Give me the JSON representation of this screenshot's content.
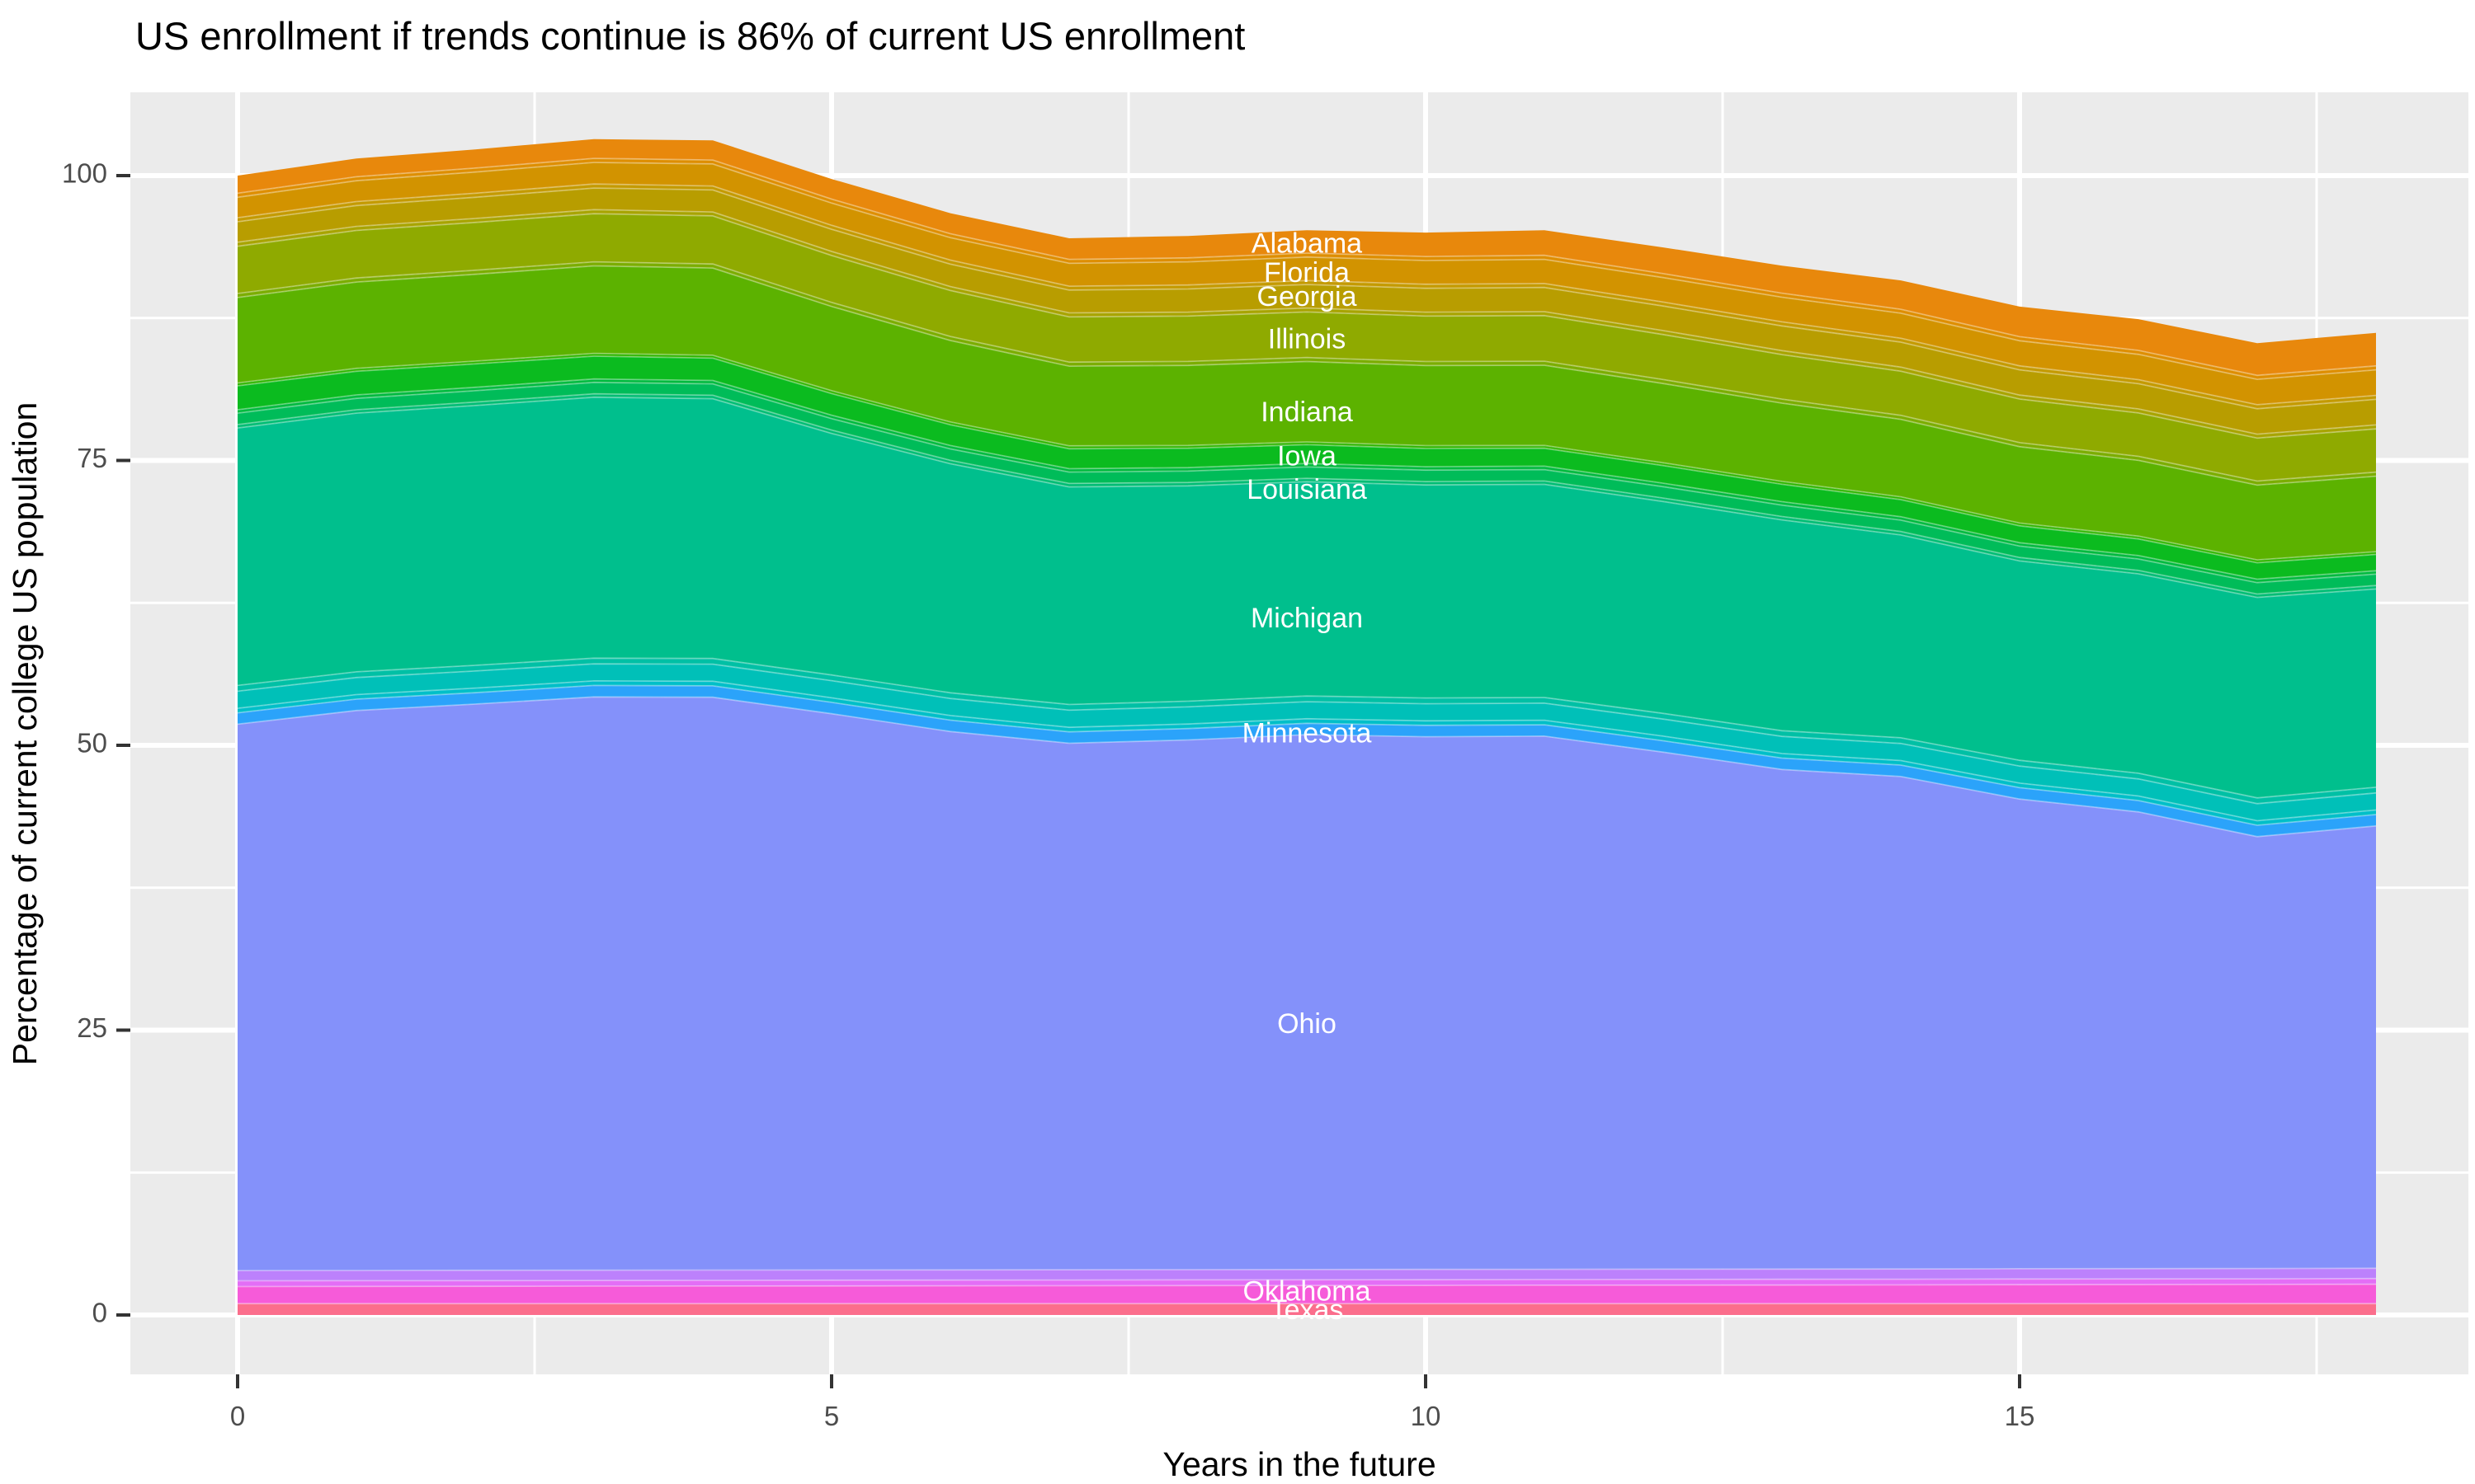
{
  "chart_data": {
    "type": "area",
    "stacked": true,
    "title": "US enrollment if trends continue is 86% of current US enrollment",
    "xlabel": "Years in the future",
    "ylabel": "Percentage of current college US population",
    "panel_background": "#EBEBEB",
    "grid_color": "#FFFFFF",
    "tick_text_color": "#4D4D4D",
    "tick_mark_color": "#333333",
    "legend": "none",
    "x": [
      0,
      1,
      2,
      3,
      4,
      5,
      6,
      7,
      8,
      9,
      10,
      11,
      12,
      13,
      14,
      15,
      16,
      17,
      18
    ],
    "x_ticks": [
      0,
      5,
      10,
      15
    ],
    "x_minor_ticks": [
      2.5,
      7.5,
      12.5,
      17.5
    ],
    "y_ticks": [
      0,
      25,
      50,
      75,
      100
    ],
    "y_minor_ticks": [
      12.5,
      37.5,
      62.5,
      87.5
    ],
    "xlim": [
      -0.9,
      18.8
    ],
    "ylim": [
      -5.2,
      107.3
    ],
    "total_start_pct": 100,
    "total_end_pct": 86,
    "series": [
      {
        "label": "",
        "color": "#FB6E8C",
        "values": [
          1,
          1,
          1,
          1,
          1,
          1,
          1,
          1,
          1,
          1,
          1,
          1,
          1,
          1,
          1,
          1,
          1,
          1,
          1
        ]
      },
      {
        "label": "Texas",
        "color": "#F65BD9",
        "values": [
          1.5,
          1.51,
          1.52,
          1.53,
          1.54,
          1.55,
          1.56,
          1.57,
          1.58,
          1.59,
          1.6,
          1.61,
          1.62,
          1.63,
          1.64,
          1.66,
          1.67,
          1.68,
          1.7
        ]
      },
      {
        "label": "",
        "color": "#E36EF6",
        "values": [
          0.5,
          0.5,
          0.5,
          0.5,
          0.5,
          0.5,
          0.5,
          0.5,
          0.5,
          0.5,
          0.5,
          0.5,
          0.5,
          0.5,
          0.5,
          0.5,
          0.5,
          0.5,
          0.5
        ]
      },
      {
        "label": "Oklahoma",
        "color": "#BC81FC",
        "values": [
          0.9,
          0.9,
          0.9,
          0.9,
          0.9,
          0.9,
          0.9,
          0.9,
          0.9,
          0.9,
          0.9,
          0.9,
          0.9,
          0.9,
          0.9,
          0.9,
          0.9,
          0.9,
          0.9
        ]
      },
      {
        "label": "Ohio",
        "color": "#8491FA",
        "values": [
          47.95,
          49.14,
          49.7,
          50.32,
          50.28,
          48.82,
          47.25,
          46.21,
          46.49,
          46.94,
          46.75,
          46.79,
          45.38,
          43.85,
          43.22,
          41.22,
          40.08,
          37.9,
          38.82
        ]
      },
      {
        "label": "",
        "color": "#2BA3FA",
        "values": [
          1,
          1,
          1,
          1,
          1,
          1,
          1,
          1,
          1,
          1,
          1,
          1,
          1,
          1,
          1,
          1,
          1,
          1,
          1
        ]
      },
      {
        "label": "",
        "color": "#00BFC8",
        "values": [
          0.4,
          0.4,
          0.4,
          0.4,
          0.4,
          0.4,
          0.4,
          0.4,
          0.4,
          0.4,
          0.4,
          0.4,
          0.4,
          0.4,
          0.4,
          0.4,
          0.4,
          0.4,
          0.4
        ]
      },
      {
        "label": "Minnesota",
        "color": "#00C0B8",
        "values": [
          1.5,
          1.5,
          1.5,
          1.5,
          1.5,
          1.5,
          1.5,
          1.5,
          1.5,
          1.5,
          1.5,
          1.5,
          1.5,
          1.5,
          1.5,
          1.5,
          1.5,
          1.5,
          1.5
        ]
      },
      {
        "label": "",
        "color": "#00C0A5",
        "values": [
          0.5,
          0.5,
          0.5,
          0.5,
          0.5,
          0.5,
          0.5,
          0.5,
          0.5,
          0.5,
          0.5,
          0.5,
          0.5,
          0.5,
          0.5,
          0.5,
          0.5,
          0.5,
          0.5
        ]
      },
      {
        "label": "Michigan",
        "color": "#00BF8D",
        "values": [
          22.6,
          22.7,
          22.8,
          22.9,
          22.8,
          21.2,
          20.1,
          19.1,
          18.9,
          18.8,
          18.7,
          18.7,
          18.6,
          18.5,
          17.8,
          17.5,
          17.5,
          17.6,
          17.4
        ]
      },
      {
        "label": "",
        "color": "#00BD74",
        "values": [
          0.3,
          0.3,
          0.3,
          0.3,
          0.3,
          0.3,
          0.3,
          0.3,
          0.3,
          0.3,
          0.3,
          0.3,
          0.3,
          0.3,
          0.3,
          0.3,
          0.3,
          0.3,
          0.3
        ]
      },
      {
        "label": "Louisiana",
        "color": "#00BC59",
        "values": [
          1,
          1,
          1,
          1,
          1,
          1,
          1,
          1,
          1,
          1,
          1,
          1,
          1,
          1,
          1,
          1,
          1,
          1,
          1
        ]
      },
      {
        "label": "",
        "color": "#00BA3E",
        "values": [
          0.3,
          0.3,
          0.3,
          0.3,
          0.3,
          0.3,
          0.3,
          0.3,
          0.3,
          0.3,
          0.3,
          0.3,
          0.3,
          0.3,
          0.3,
          0.3,
          0.3,
          0.3,
          0.3
        ]
      },
      {
        "label": "Iowa",
        "color": "#0BBB1F",
        "values": [
          2.1,
          2.08,
          2.05,
          2,
          1.96,
          1.9,
          1.82,
          1.75,
          1.7,
          1.65,
          1.6,
          1.57,
          1.55,
          1.53,
          1.5,
          1.48,
          1.46,
          1.44,
          1.43
        ]
      },
      {
        "label": "",
        "color": "#2FB600",
        "values": [
          0.25,
          0.25,
          0.25,
          0.25,
          0.25,
          0.25,
          0.25,
          0.25,
          0.25,
          0.25,
          0.25,
          0.25,
          0.25,
          0.25,
          0.25,
          0.25,
          0.25,
          0.25,
          0.25
        ]
      },
      {
        "label": "Indiana",
        "color": "#5CB200",
        "values": [
          7.5,
          7.58,
          7.62,
          7.68,
          7.66,
          7.4,
          7.15,
          7,
          7.02,
          7.05,
          7.03,
          7.04,
          6.95,
          6.87,
          6.8,
          6.7,
          6.65,
          6.57,
          6.62
        ]
      },
      {
        "label": "",
        "color": "#7BAD00",
        "values": [
          0.35,
          0.35,
          0.35,
          0.35,
          0.35,
          0.35,
          0.35,
          0.35,
          0.35,
          0.35,
          0.35,
          0.35,
          0.35,
          0.35,
          0.35,
          0.35,
          0.35,
          0.35,
          0.35
        ]
      },
      {
        "label": "Illinois",
        "color": "#8FAA00",
        "values": [
          4.15,
          4.18,
          4.2,
          4.23,
          4.22,
          4.12,
          4.03,
          3.97,
          3.98,
          4,
          3.99,
          4,
          3.95,
          3.91,
          3.88,
          3.83,
          3.81,
          3.77,
          3.8
        ]
      },
      {
        "label": "",
        "color": "#A8A400",
        "values": [
          0.35,
          0.35,
          0.35,
          0.35,
          0.35,
          0.35,
          0.35,
          0.35,
          0.35,
          0.35,
          0.35,
          0.35,
          0.35,
          0.35,
          0.35,
          0.35,
          0.35,
          0.35,
          0.35
        ]
      },
      {
        "label": "Georgia",
        "color": "#B89D00",
        "values": [
          1.8,
          1.83,
          1.86,
          1.9,
          1.93,
          1.95,
          1.97,
          2,
          2.03,
          2.06,
          2.09,
          2.12,
          2.15,
          2.17,
          2.19,
          2.21,
          2.22,
          2.23,
          2.24
        ]
      },
      {
        "label": "",
        "color": "#C49A00",
        "values": [
          0.35,
          0.35,
          0.35,
          0.35,
          0.35,
          0.35,
          0.35,
          0.35,
          0.35,
          0.35,
          0.35,
          0.35,
          0.35,
          0.35,
          0.35,
          0.35,
          0.35,
          0.35,
          0.35
        ]
      },
      {
        "label": "Florida",
        "color": "#D29300",
        "values": [
          1.8,
          1.83,
          1.86,
          1.9,
          1.93,
          1.95,
          1.97,
          2,
          2.03,
          2.06,
          2.09,
          2.12,
          2.15,
          2.17,
          2.19,
          2.21,
          2.22,
          2.23,
          2.24
        ]
      },
      {
        "label": "",
        "color": "#DE8E00",
        "values": [
          0.35,
          0.35,
          0.35,
          0.35,
          0.35,
          0.35,
          0.35,
          0.35,
          0.35,
          0.35,
          0.35,
          0.35,
          0.35,
          0.35,
          0.35,
          0.35,
          0.35,
          0.35,
          0.35
        ]
      },
      {
        "label": "Alabama",
        "color": "#E8880C",
        "values": [
          1.55,
          1.6,
          1.64,
          1.69,
          1.73,
          1.76,
          1.8,
          1.85,
          1.92,
          2,
          2.1,
          2.2,
          2.3,
          2.42,
          2.53,
          2.64,
          2.74,
          2.83,
          2.9
        ]
      }
    ],
    "labels": [
      {
        "text": "Alabama",
        "x": 9,
        "y": 93.9
      },
      {
        "text": "Florida",
        "x": 9,
        "y": 91.3
      },
      {
        "text": "Georgia",
        "x": 9,
        "y": 89.2
      },
      {
        "text": "Illinois",
        "x": 9,
        "y": 85.5
      },
      {
        "text": "Indiana",
        "x": 9,
        "y": 79.1
      },
      {
        "text": "Iowa",
        "x": 9,
        "y": 75.2
      },
      {
        "text": "Louisiana",
        "x": 9,
        "y": 72.3
      },
      {
        "text": "Michigan",
        "x": 9,
        "y": 61.0
      },
      {
        "text": "Minnesota",
        "x": 9,
        "y": 50.9
      },
      {
        "text": "Ohio",
        "x": 9,
        "y": 25.4
      },
      {
        "text": "Oklahoma",
        "x": 9,
        "y": 1.9
      },
      {
        "text": "Texas",
        "x": 9,
        "y": 0.3
      }
    ]
  }
}
